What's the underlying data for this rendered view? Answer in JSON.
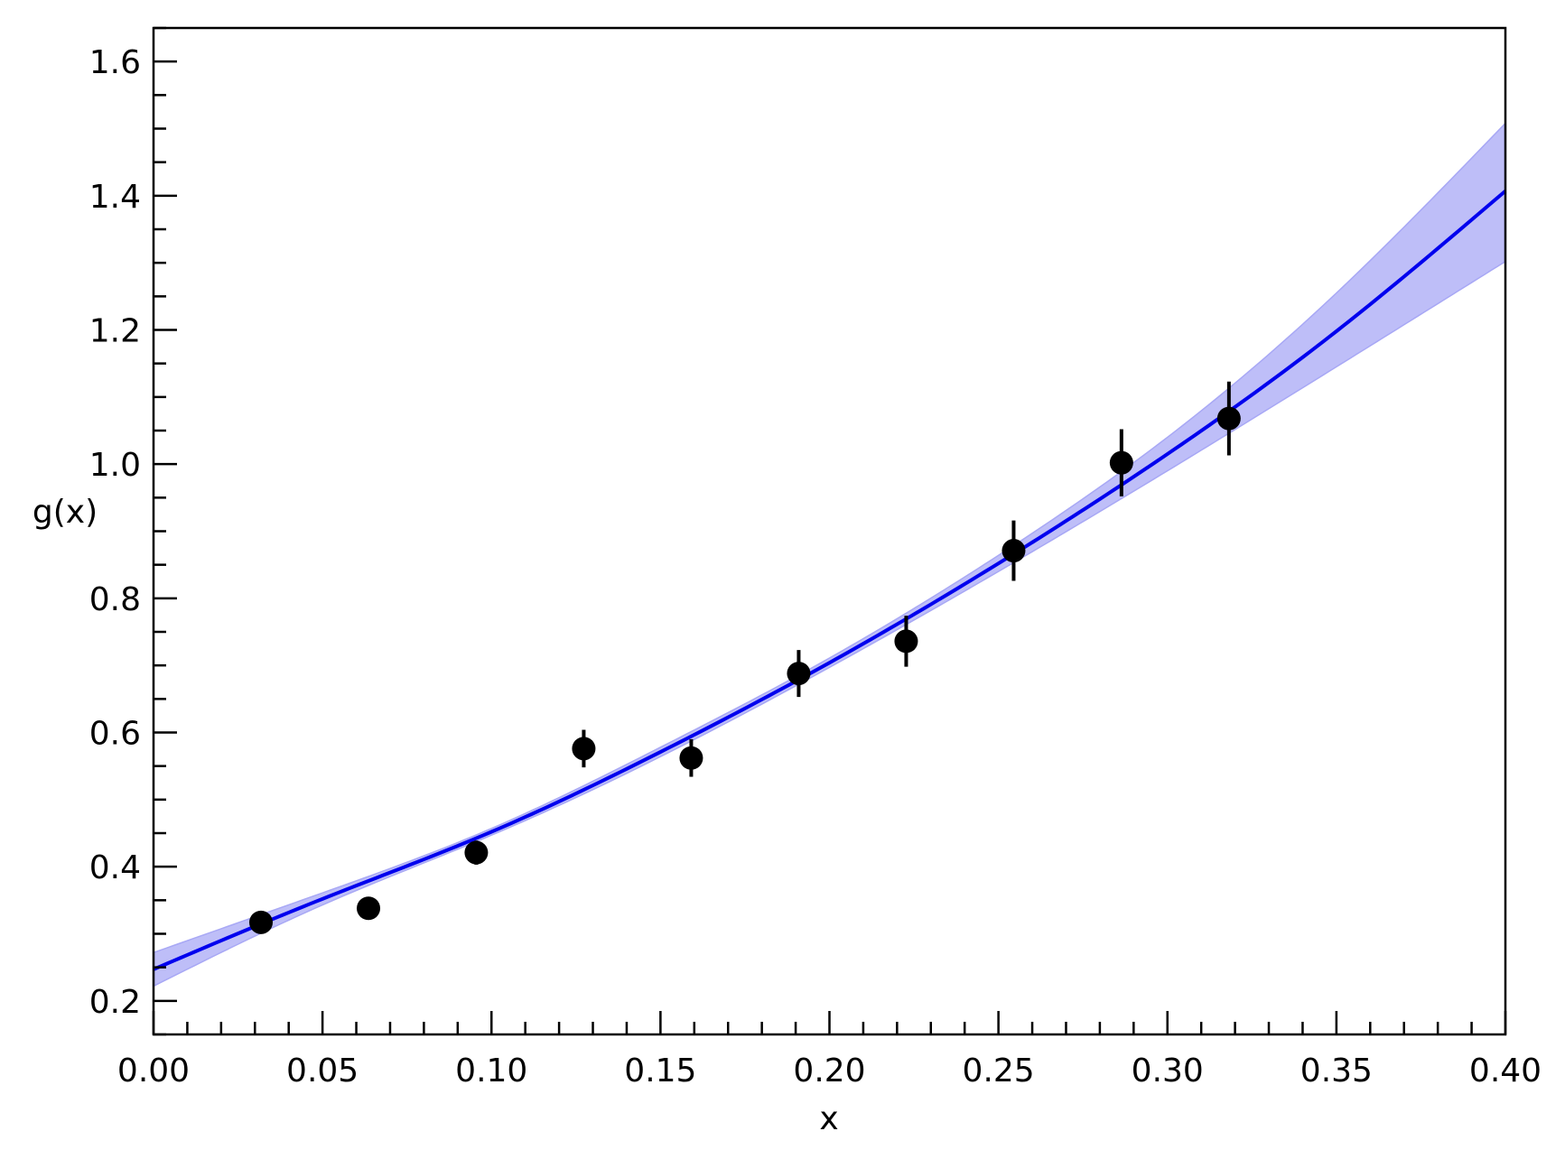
{
  "chart_data": {
    "type": "scatter",
    "xlabel": "x",
    "ylabel": "g(x)",
    "xlim": [
      0.0,
      0.4
    ],
    "ylim": [
      0.15,
      1.65
    ],
    "grid": false,
    "x_ticks": [
      "0.00",
      "0.05",
      "0.10",
      "0.15",
      "0.20",
      "0.25",
      "0.30",
      "0.35",
      "0.40"
    ],
    "y_ticks": [
      "0.2",
      "0.4",
      "0.6",
      "0.8",
      "1.0",
      "1.2",
      "1.4",
      "1.6"
    ],
    "colors": {
      "fit": "#0000ee",
      "band": "#a8a8f5",
      "points": "#000000"
    },
    "series": [
      {
        "kind": "points_with_errorbars",
        "x": [
          0.0318,
          0.0636,
          0.0955,
          0.1273,
          0.1591,
          0.1909,
          0.2227,
          0.2545,
          0.2864,
          0.3182
        ],
        "y": [
          0.317,
          0.338,
          0.421,
          0.576,
          0.562,
          0.688,
          0.736,
          0.871,
          1.002,
          1.068
        ],
        "yerr": [
          0.008,
          0.01,
          0.018,
          0.028,
          0.028,
          0.035,
          0.038,
          0.045,
          0.05,
          0.055
        ]
      },
      {
        "kind": "fit_curve",
        "x": [
          0.0,
          0.05,
          0.1,
          0.15,
          0.2,
          0.25,
          0.3,
          0.35,
          0.4
        ],
        "y": [
          0.247,
          0.352,
          0.452,
          0.571,
          0.704,
          0.852,
          1.015,
          1.198,
          1.407
        ],
        "band_low": [
          0.222,
          0.343,
          0.447,
          0.564,
          0.697,
          0.84,
          0.99,
          1.145,
          1.302
        ],
        "band_high": [
          0.272,
          0.361,
          0.457,
          0.578,
          0.711,
          0.864,
          1.04,
          1.255,
          1.508
        ]
      }
    ]
  }
}
